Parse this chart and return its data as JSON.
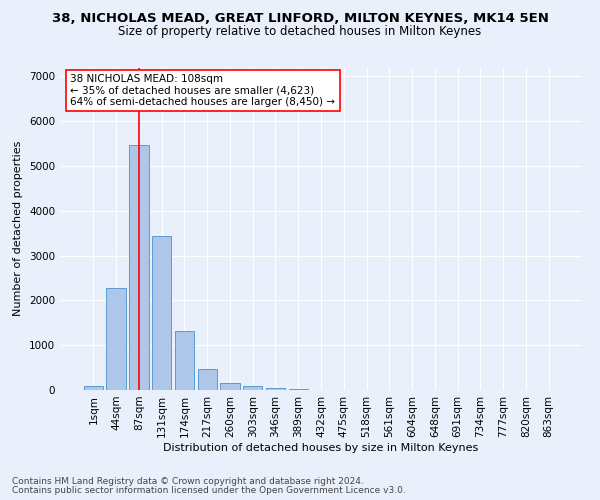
{
  "title": "38, NICHOLAS MEAD, GREAT LINFORD, MILTON KEYNES, MK14 5EN",
  "subtitle": "Size of property relative to detached houses in Milton Keynes",
  "xlabel": "Distribution of detached houses by size in Milton Keynes",
  "ylabel": "Number of detached properties",
  "footer_line1": "Contains HM Land Registry data © Crown copyright and database right 2024.",
  "footer_line2": "Contains public sector information licensed under the Open Government Licence v3.0.",
  "bar_labels": [
    "1sqm",
    "44sqm",
    "87sqm",
    "131sqm",
    "174sqm",
    "217sqm",
    "260sqm",
    "303sqm",
    "346sqm",
    "389sqm",
    "432sqm",
    "475sqm",
    "518sqm",
    "561sqm",
    "604sqm",
    "648sqm",
    "691sqm",
    "734sqm",
    "777sqm",
    "820sqm",
    "863sqm"
  ],
  "bar_values": [
    80,
    2270,
    5470,
    3440,
    1310,
    460,
    155,
    90,
    50,
    30,
    10,
    5,
    2,
    1,
    0,
    0,
    0,
    0,
    0,
    0,
    0
  ],
  "bar_color": "#aec6e8",
  "bar_edgecolor": "#5b9bd5",
  "vline_x": 2,
  "vline_color": "red",
  "annotation_text": "38 NICHOLAS MEAD: 108sqm\n← 35% of detached houses are smaller (4,623)\n64% of semi-detached houses are larger (8,450) →",
  "ylim": [
    0,
    7200
  ],
  "yticks": [
    0,
    1000,
    2000,
    3000,
    4000,
    5000,
    6000,
    7000
  ],
  "bg_color": "#eaf0fb",
  "grid_color": "#ffffff",
  "title_fontsize": 9.5,
  "subtitle_fontsize": 8.5,
  "axis_label_fontsize": 8,
  "tick_fontsize": 7.5,
  "footer_fontsize": 6.5
}
